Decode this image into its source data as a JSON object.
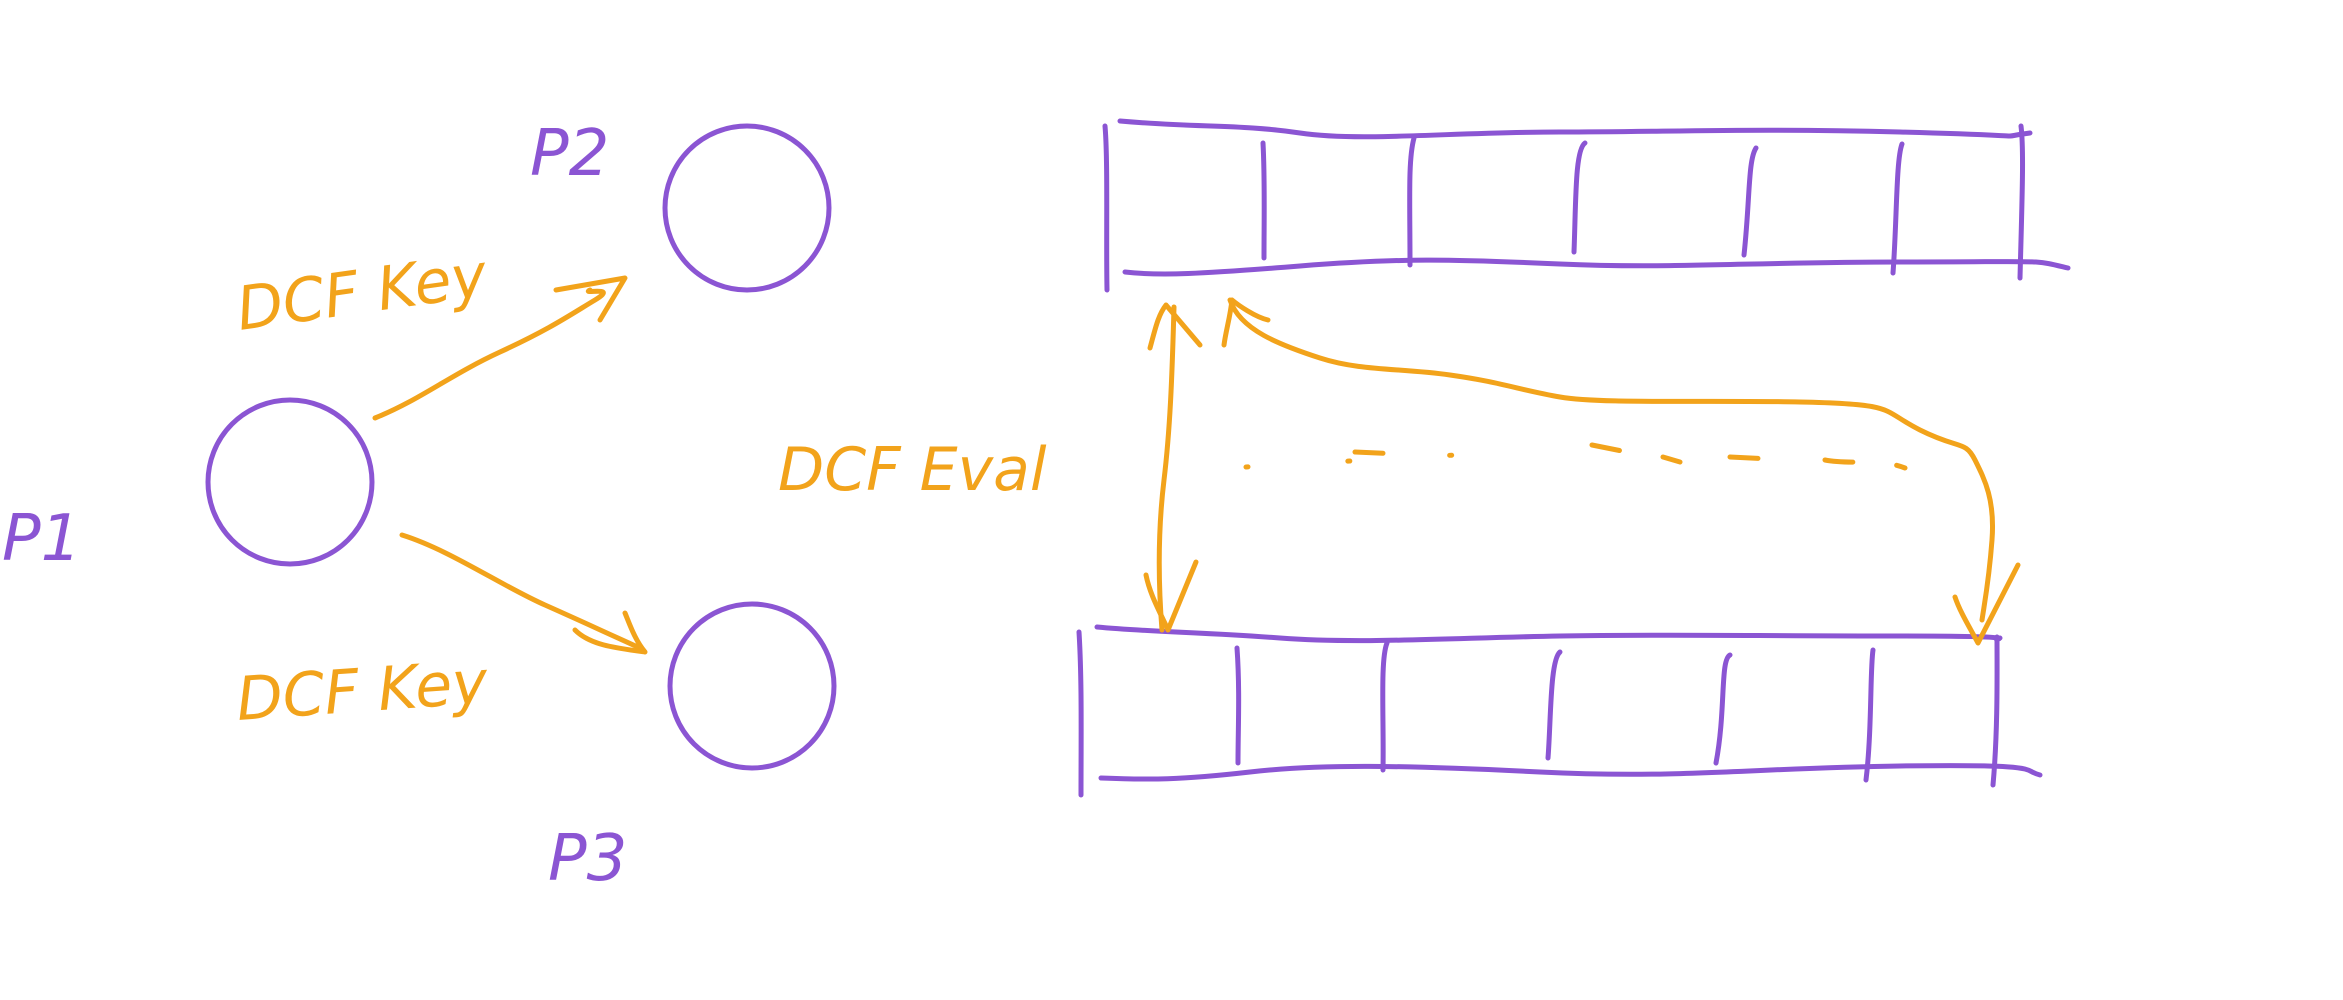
{
  "colors": {
    "node_ink": "#8b55d3",
    "annotation_ink": "#f2a31b",
    "background": "#ffffff"
  },
  "nodes": [
    {
      "id": "p1",
      "label": "P1"
    },
    {
      "id": "p2",
      "label": "P2"
    },
    {
      "id": "p3",
      "label": "P3"
    }
  ],
  "edges": [
    {
      "from": "p1",
      "to": "p2",
      "label": "DCF Key"
    },
    {
      "from": "p1",
      "to": "p3",
      "label": "DCF Key"
    }
  ],
  "arrays": {
    "top_array_cells": 6,
    "bottom_array_cells": 6
  },
  "eval_label": "DCF Eval"
}
